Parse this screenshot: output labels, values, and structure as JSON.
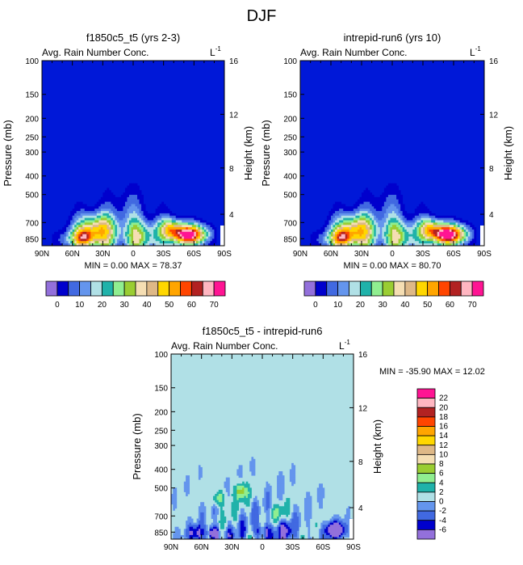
{
  "page": {
    "title": "DJF"
  },
  "colors": {
    "bg_blue": "#0018d8",
    "diff_bg": "#b0e0e6",
    "palette": [
      "#9370db",
      "#0000cd",
      "#4169e1",
      "#6495ed",
      "#b0e0e6",
      "#20b2aa",
      "#90ee90",
      "#9acd32",
      "#f5deb3",
      "#deb887",
      "#ffd700",
      "#ffa500",
      "#ff4500",
      "#b22222",
      "#ffb6c1",
      "#ff1493"
    ]
  },
  "chart_data": [
    {
      "type": "heatmap",
      "id": "p1",
      "title": "f1850c5_t5 (yrs 2-3)",
      "subtitle": "Avg. Rain Number Conc.",
      "units": "L",
      "units_exp": "-1",
      "xlabel": "",
      "ylabel": "Pressure (mb)",
      "y2label": "Height (km)",
      "x_ticks": [
        "90N",
        "60N",
        "30N",
        "0",
        "30S",
        "60S",
        "90S"
      ],
      "y_ticks": [
        "100",
        "150",
        "200",
        "250",
        "300",
        "400",
        "500",
        "700",
        "850"
      ],
      "y2_ticks": [
        "16",
        "12",
        "8",
        "4"
      ],
      "stats": "MIN =   0.00  MAX =  78.37",
      "min": 0.0,
      "max": 78.37
    },
    {
      "type": "heatmap",
      "id": "p2",
      "title": "intrepid-run6 (yrs 10)",
      "subtitle": "Avg. Rain Number Conc.",
      "units": "L",
      "units_exp": "-1",
      "xlabel": "",
      "ylabel": "Pressure (mb)",
      "y2label": "Height (km)",
      "x_ticks": [
        "90N",
        "60N",
        "30N",
        "0",
        "30S",
        "60S",
        "90S"
      ],
      "y_ticks": [
        "100",
        "150",
        "200",
        "250",
        "300",
        "400",
        "500",
        "700",
        "850"
      ],
      "y2_ticks": [
        "16",
        "12",
        "8",
        "4"
      ],
      "stats": "MIN =   0.00  MAX =  80.70",
      "min": 0.0,
      "max": 80.7
    },
    {
      "type": "heatmap",
      "id": "p3",
      "title": "f1850c5_t5 - intrepid-run6",
      "subtitle": "Avg. Rain Number Conc.",
      "units": "L",
      "units_exp": "-1",
      "xlabel": "",
      "ylabel": "Pressure (mb)",
      "y2label": "Height (km)",
      "x_ticks": [
        "90N",
        "60N",
        "30N",
        "0",
        "30S",
        "60S",
        "90S"
      ],
      "y_ticks": [
        "100",
        "150",
        "200",
        "250",
        "300",
        "400",
        "500",
        "700",
        "850"
      ],
      "y2_ticks": [
        "16",
        "12",
        "8",
        "4"
      ],
      "stats": "MIN = -35.90  MAX =  12.02",
      "min": -35.9,
      "max": 12.02
    }
  ],
  "legend_top": {
    "labels": [
      "0",
      "10",
      "20",
      "30",
      "40",
      "50",
      "60",
      "70"
    ],
    "contour_levels": [
      0,
      5,
      10,
      15,
      20,
      25,
      30,
      35,
      40,
      45,
      50,
      55,
      60,
      65,
      70
    ]
  },
  "legend_diff": {
    "labels": [
      "22",
      "20",
      "18",
      "16",
      "14",
      "12",
      "10",
      "8",
      "6",
      "4",
      "2",
      "0",
      "-2",
      "-4",
      "-6"
    ]
  }
}
